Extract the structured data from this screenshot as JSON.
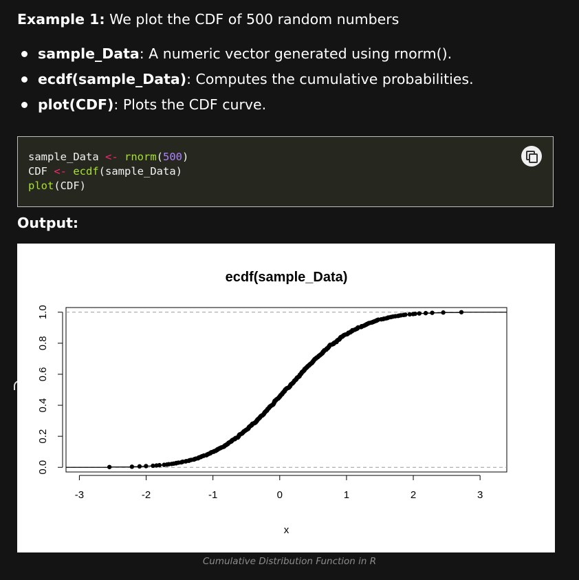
{
  "heading": {
    "label": "Example 1:",
    "text": " We plot the CDF of 500 random numbers"
  },
  "bullets": [
    {
      "term": "sample_Data",
      "desc": ": A numeric vector generated using rnorm()."
    },
    {
      "term": "ecdf(sample_Data)",
      "desc": ": Computes the cumulative probabilities."
    },
    {
      "term": "plot(CDF)",
      "desc": ": Plots the CDF curve."
    }
  ],
  "code": {
    "lines": [
      [
        {
          "text": "sample_Data ",
          "cls": ""
        },
        {
          "text": "<-",
          "cls": "op"
        },
        {
          "text": " ",
          "cls": ""
        },
        {
          "text": "rnorm",
          "cls": "fn"
        },
        {
          "text": "(",
          "cls": ""
        },
        {
          "text": "500",
          "cls": "num"
        },
        {
          "text": ")",
          "cls": ""
        }
      ],
      [
        {
          "text": "CDF ",
          "cls": ""
        },
        {
          "text": "<-",
          "cls": "op"
        },
        {
          "text": " ",
          "cls": ""
        },
        {
          "text": "ecdf",
          "cls": "fn"
        },
        {
          "text": "(sample_Data)",
          "cls": ""
        }
      ],
      [
        {
          "text": "plot",
          "cls": "fn"
        },
        {
          "text": "(CDF)",
          "cls": ""
        }
      ]
    ],
    "copy_icon": "copy-icon"
  },
  "output_label": "Output:",
  "caption": "Cumulative Distribution Function in R",
  "chart_data": {
    "type": "scatter",
    "title": "ecdf(sample_Data)",
    "xlabel": "x",
    "ylabel": "",
    "xlim": [
      -3.2,
      3.4
    ],
    "ylim": [
      -0.03,
      1.03
    ],
    "x_ticks": [
      "-3",
      "-2",
      "-1",
      "0",
      "1",
      "2",
      "3"
    ],
    "y_ticks": [
      "0.0",
      "0.2",
      "0.4",
      "0.6",
      "0.8",
      "1.0"
    ],
    "reference_lines_y": [
      0,
      1
    ],
    "n_points": 500,
    "distribution": "standard normal",
    "x_range": [
      -2.55,
      2.72
    ],
    "grid": false,
    "legend": "none"
  }
}
